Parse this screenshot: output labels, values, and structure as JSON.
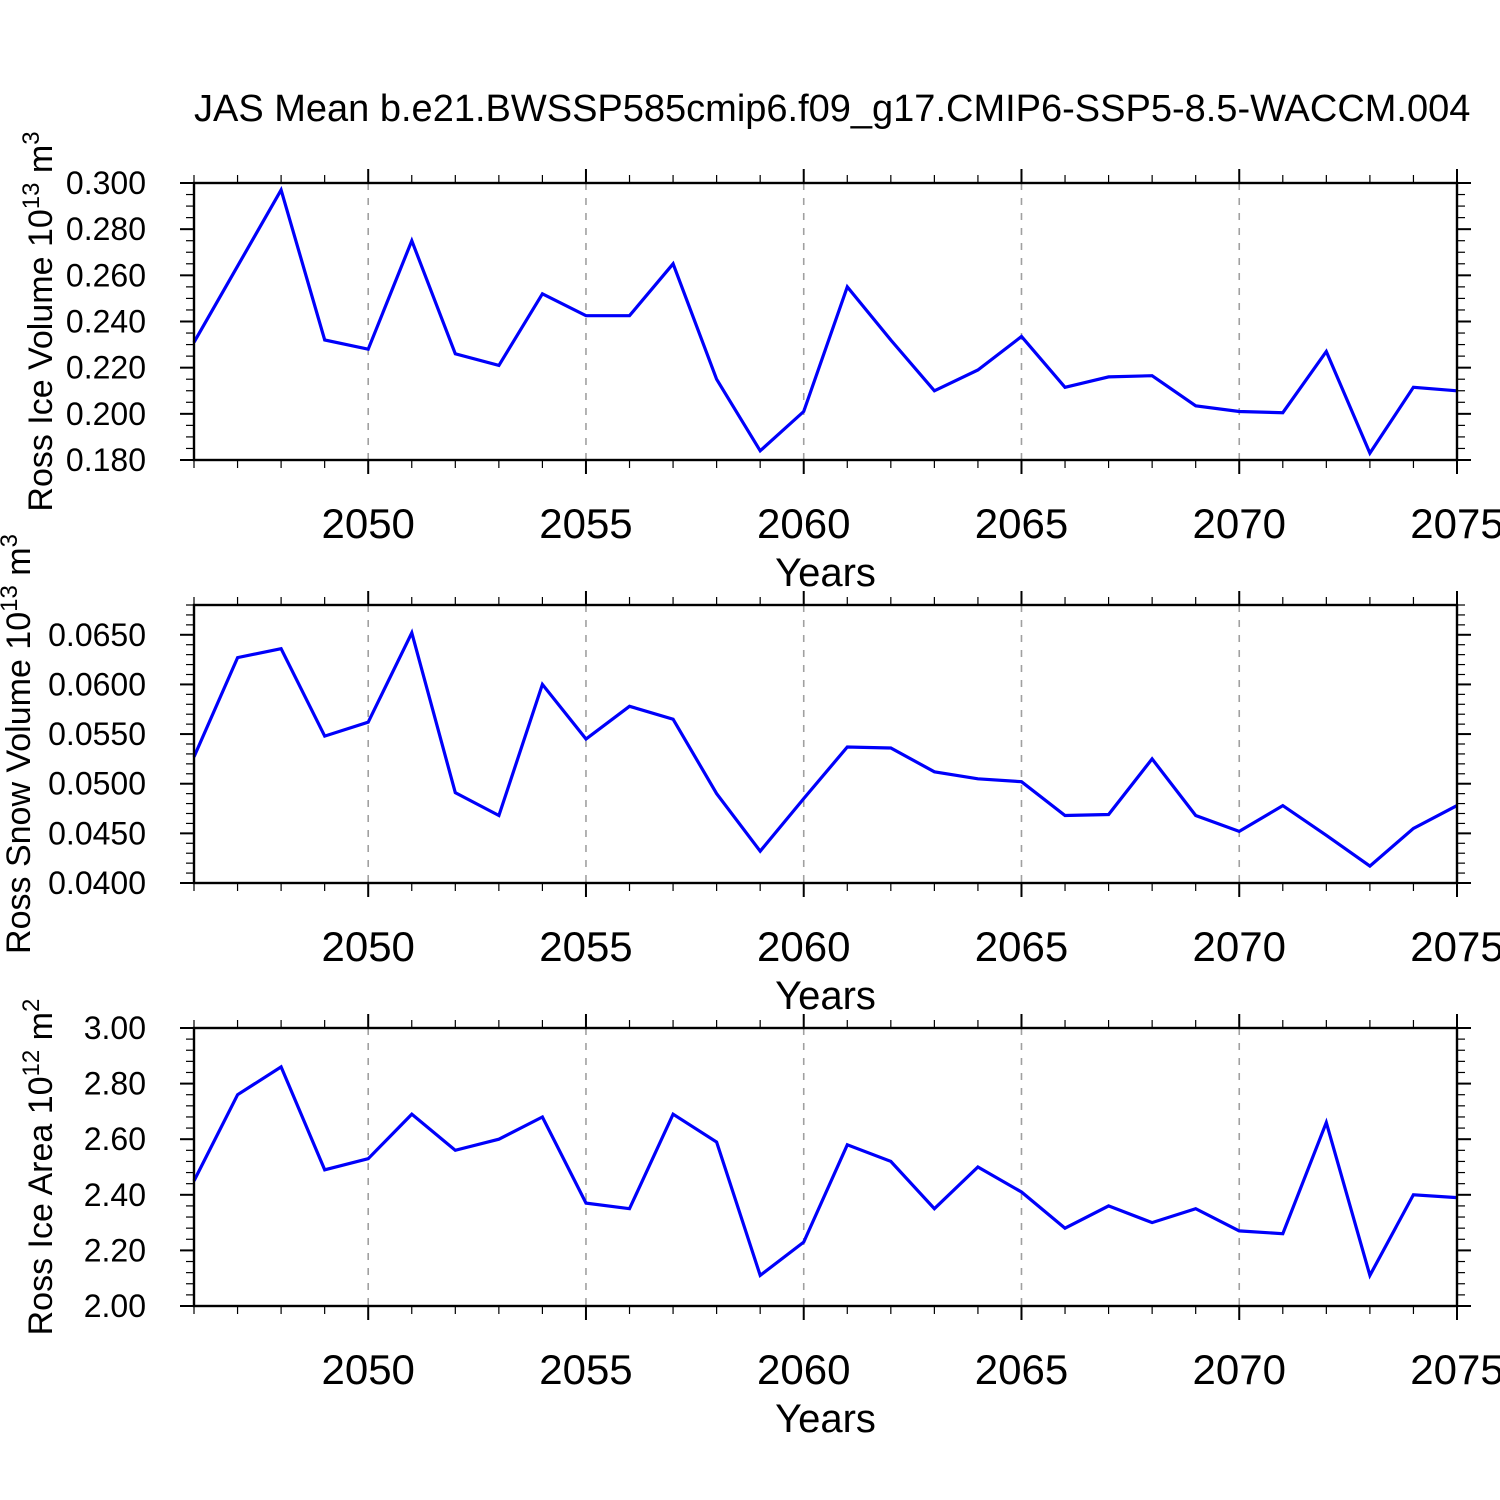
{
  "title": "JAS Mean b.e21.BWSSP585cmip6.f09_g17.CMIP6-SSP5-8.5-WACCM.004",
  "colors": {
    "line": "#0000fa",
    "grid": "#a0a0a0",
    "axis": "#000000",
    "text": "#000000",
    "background": "#ffffff"
  },
  "x_axis": {
    "label": "Years",
    "range": [
      2046,
      2075
    ],
    "major_ticks": [
      2050,
      2055,
      2060,
      2065,
      2070,
      2075
    ],
    "minor_step": 1,
    "gridline_years": [
      2050,
      2055,
      2060,
      2065,
      2070
    ]
  },
  "chart_data": [
    {
      "type": "line",
      "name": "ross-ice-volume",
      "ylabel_parts": [
        {
          "text": "Ross Ice Volume 10"
        },
        {
          "text": "13",
          "sup": true
        },
        {
          "text": " m"
        },
        {
          "text": "3",
          "sup": true
        }
      ],
      "ylim": [
        0.18,
        0.3
      ],
      "ytick_values": [
        0.3,
        0.28,
        0.26,
        0.24,
        0.22,
        0.2,
        0.18
      ],
      "ytick_labels": [
        "0.300",
        "0.280",
        "0.260",
        "0.240",
        "0.220",
        "0.200",
        "0.180"
      ],
      "yminor_step": 0.005,
      "x": [
        2046,
        2047,
        2048,
        2049,
        2050,
        2051,
        2052,
        2053,
        2054,
        2055,
        2056,
        2057,
        2058,
        2059,
        2060,
        2061,
        2062,
        2063,
        2064,
        2065,
        2066,
        2067,
        2068,
        2069,
        2070,
        2071,
        2072,
        2073,
        2074,
        2075
      ],
      "values": [
        0.231,
        0.264,
        0.297,
        0.232,
        0.228,
        0.275,
        0.226,
        0.221,
        0.252,
        0.2425,
        0.2425,
        0.265,
        0.215,
        0.184,
        0.201,
        0.255,
        0.232,
        0.21,
        0.219,
        0.2335,
        0.2115,
        0.216,
        0.2165,
        0.2035,
        0.201,
        0.2005,
        0.227,
        0.183,
        0.2115,
        0.21
      ]
    },
    {
      "type": "line",
      "name": "ross-snow-volume",
      "ylabel_parts": [
        {
          "text": "Ross Snow Volume 10"
        },
        {
          "text": "13",
          "sup": true
        },
        {
          "text": " m"
        },
        {
          "text": "3",
          "sup": true
        }
      ],
      "ylim": [
        0.04,
        0.068
      ],
      "ytick_values": [
        0.065,
        0.06,
        0.055,
        0.05,
        0.045,
        0.04
      ],
      "ytick_labels": [
        "0.0650",
        "0.0600",
        "0.0550",
        "0.0500",
        "0.0450",
        "0.0400"
      ],
      "yminor_step": 0.001,
      "x": [
        2046,
        2047,
        2048,
        2049,
        2050,
        2051,
        2052,
        2053,
        2054,
        2055,
        2056,
        2057,
        2058,
        2059,
        2060,
        2061,
        2062,
        2063,
        2064,
        2065,
        2066,
        2067,
        2068,
        2069,
        2070,
        2071,
        2072,
        2073,
        2074,
        2075
      ],
      "values": [
        0.0527,
        0.0627,
        0.0636,
        0.0548,
        0.0562,
        0.0652,
        0.0491,
        0.0468,
        0.06,
        0.0545,
        0.0578,
        0.0565,
        0.049,
        0.0432,
        0.0485,
        0.0537,
        0.0536,
        0.0512,
        0.0505,
        0.0502,
        0.0468,
        0.0469,
        0.0525,
        0.0468,
        0.0452,
        0.0478,
        0.0448,
        0.0417,
        0.0455,
        0.0478
      ]
    },
    {
      "type": "line",
      "name": "ross-ice-area",
      "ylabel_parts": [
        {
          "text": "Ross Ice Area 10"
        },
        {
          "text": "12",
          "sup": true
        },
        {
          "text": " m"
        },
        {
          "text": "2",
          "sup": true
        }
      ],
      "ylim": [
        2.0,
        3.0
      ],
      "ytick_values": [
        3.0,
        2.8,
        2.6,
        2.4,
        2.2,
        2.0
      ],
      "ytick_labels": [
        "3.00",
        "2.80",
        "2.60",
        "2.40",
        "2.20",
        "2.00"
      ],
      "yminor_step": 0.04,
      "x": [
        2046,
        2047,
        2048,
        2049,
        2050,
        2051,
        2052,
        2053,
        2054,
        2055,
        2056,
        2057,
        2058,
        2059,
        2060,
        2061,
        2062,
        2063,
        2064,
        2065,
        2066,
        2067,
        2068,
        2069,
        2070,
        2071,
        2072,
        2073,
        2074,
        2075
      ],
      "values": [
        2.45,
        2.76,
        2.86,
        2.49,
        2.53,
        2.69,
        2.56,
        2.6,
        2.68,
        2.37,
        2.35,
        2.69,
        2.59,
        2.11,
        2.23,
        2.58,
        2.52,
        2.35,
        2.5,
        2.41,
        2.28,
        2.36,
        2.3,
        2.35,
        2.27,
        2.26,
        2.66,
        2.11,
        2.4,
        2.39
      ]
    }
  ]
}
